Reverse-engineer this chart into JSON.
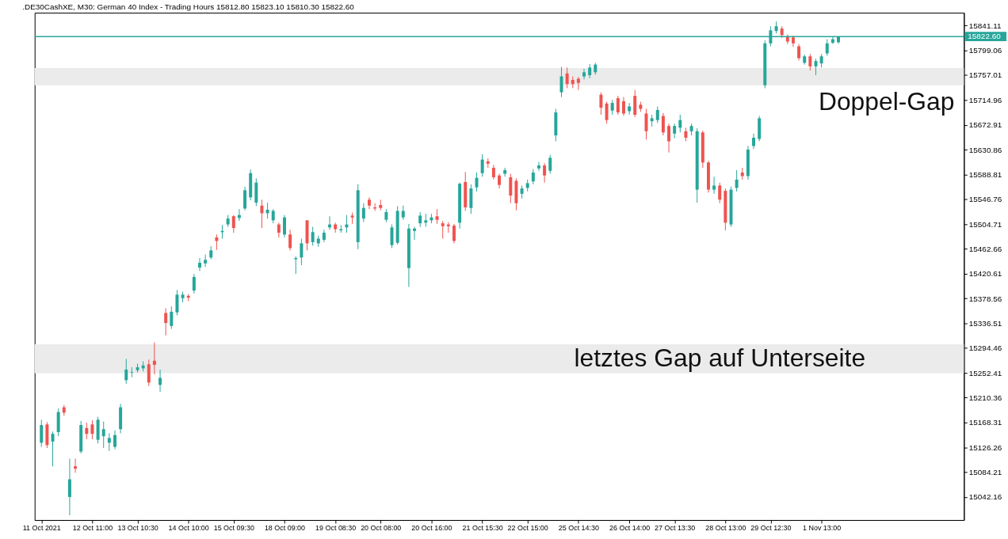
{
  "chart_data": {
    "type": "candlestick",
    "title": ".DE30CashXE, M30:  German 40 Index - Trading Hours  15812.80 15823.10 15810.30 15822.60",
    "categories": [
      "11 Oct 2021",
      null,
      null,
      null,
      null,
      null,
      null,
      null,
      null,
      "12 Oct 11:00",
      null,
      null,
      null,
      null,
      null,
      null,
      null,
      "13 Oct 10:30",
      null,
      null,
      null,
      null,
      null,
      null,
      null,
      null,
      "14 Oct 10:00",
      null,
      null,
      null,
      null,
      null,
      null,
      null,
      "15 Oct 09:30",
      null,
      null,
      null,
      null,
      null,
      null,
      null,
      null,
      "18 Oct 09:00",
      null,
      null,
      null,
      null,
      null,
      null,
      null,
      null,
      "19 Oct 08:30",
      null,
      null,
      null,
      null,
      null,
      null,
      null,
      "20 Oct 08:00",
      null,
      null,
      null,
      null,
      null,
      null,
      null,
      null,
      "20 Oct 16:00",
      null,
      null,
      null,
      null,
      null,
      null,
      null,
      null,
      "21 Oct 15:30",
      null,
      null,
      null,
      null,
      null,
      null,
      null,
      "22 Oct 15:00",
      null,
      null,
      null,
      null,
      null,
      null,
      null,
      null,
      "25 Oct 14:30",
      null,
      null,
      null,
      null,
      null,
      null,
      null,
      null,
      "26 Oct 14:00",
      null,
      null,
      null,
      null,
      null,
      null,
      null,
      "27 Oct 13:30",
      null,
      null,
      null,
      null,
      null,
      null,
      null,
      null,
      "28 Oct 13:00",
      null,
      null,
      null,
      null,
      null,
      null,
      null,
      "29 Oct 12:30",
      null,
      null,
      null,
      null,
      null,
      null,
      null,
      null,
      "1 Nov 13:00",
      null,
      null,
      null,
      null,
      null,
      null,
      null,
      null,
      null,
      null,
      null,
      null,
      null,
      null,
      null,
      null,
      null,
      null,
      null,
      null,
      null,
      null,
      null,
      null
    ],
    "ohlc": [
      [
        15134,
        15173,
        15127,
        15164
      ],
      [
        15165,
        15169,
        15125,
        15130
      ],
      [
        15136,
        15153,
        15094,
        15149
      ],
      [
        15152,
        15192,
        15145,
        15186
      ],
      [
        15194,
        15198,
        15180,
        15185
      ],
      [
        15042,
        15107,
        15011,
        15072
      ],
      [
        15094,
        15107,
        15083,
        15090
      ],
      [
        15119,
        15171,
        15116,
        15164
      ],
      [
        15159,
        15168,
        15140,
        15149
      ],
      [
        15165,
        15172,
        15140,
        15149
      ],
      [
        15139,
        15178,
        15133,
        15173
      ],
      [
        15145,
        15170,
        15125,
        15157
      ],
      [
        15134,
        15150,
        15120,
        15142
      ],
      [
        15127,
        15155,
        15123,
        15147
      ],
      [
        15157,
        15200,
        15150,
        15194
      ],
      [
        15240,
        15276,
        15234,
        15258
      ],
      [
        15253,
        15262,
        15245,
        15254
      ],
      [
        15257,
        15268,
        15253,
        15262
      ],
      [
        15260,
        15272,
        15255,
        15265
      ],
      [
        15267,
        15275,
        15230,
        15236
      ],
      [
        15273,
        15304,
        15250,
        15266
      ],
      [
        15232,
        15258,
        15220,
        15244
      ],
      [
        15354,
        15362,
        15316,
        15337
      ],
      [
        15332,
        15365,
        15327,
        15356
      ],
      [
        15355,
        15393,
        15350,
        15385
      ],
      [
        15379,
        15390,
        15372,
        15385
      ],
      [
        15383,
        15386,
        15374,
        15380
      ],
      [
        15392,
        15420,
        15387,
        15415
      ],
      [
        15431,
        15447,
        15425,
        15439
      ],
      [
        15438,
        15453,
        15432,
        15444
      ],
      [
        15448,
        15467,
        15445,
        15460
      ],
      [
        15482,
        15487,
        15461,
        15476
      ],
      [
        15491,
        15503,
        15480,
        15493
      ],
      [
        15504,
        15520,
        15500,
        15514
      ],
      [
        15518,
        15520,
        15490,
        15498
      ],
      [
        15515,
        15530,
        15510,
        15520
      ],
      [
        15531,
        15568,
        15528,
        15562
      ],
      [
        15550,
        15597,
        15545,
        15591
      ],
      [
        15541,
        15582,
        15535,
        15575
      ],
      [
        15536,
        15546,
        15498,
        15523
      ],
      [
        15523,
        15541,
        15514,
        15529
      ],
      [
        15511,
        15530,
        15506,
        15527
      ],
      [
        15504,
        15507,
        15482,
        15490
      ],
      [
        15487,
        15520,
        15482,
        15516
      ],
      [
        15487,
        15495,
        15460,
        15464
      ],
      [
        15445,
        15450,
        15420,
        15447
      ],
      [
        15448,
        15480,
        15435,
        15472
      ],
      [
        15511,
        15511,
        15460,
        15472
      ],
      [
        15474,
        15500,
        15468,
        15491
      ],
      [
        15472,
        15485,
        15466,
        15480
      ],
      [
        15478,
        15495,
        15474,
        15490
      ],
      [
        15499,
        15518,
        15495,
        15504
      ],
      [
        15504,
        15507,
        15490,
        15496
      ],
      [
        15494,
        15503,
        15490,
        15496
      ],
      [
        15499,
        15520,
        15490,
        15504
      ],
      [
        15519,
        15524,
        15505,
        15516
      ],
      [
        15474,
        15572,
        15462,
        15562
      ],
      [
        15514,
        15540,
        15508,
        15532
      ],
      [
        15546,
        15550,
        15530,
        15536
      ],
      [
        15533,
        15540,
        15527,
        15531
      ],
      [
        15537,
        15546,
        15528,
        15532
      ],
      [
        15512,
        15530,
        15508,
        15525
      ],
      [
        15469,
        15504,
        15464,
        15499
      ],
      [
        15473,
        15535,
        15470,
        15527
      ],
      [
        15516,
        15536,
        15512,
        15527
      ],
      [
        15430,
        15505,
        15398,
        15497
      ],
      [
        15493,
        15500,
        15478,
        15497
      ],
      [
        15506,
        15525,
        15500,
        15519
      ],
      [
        15507,
        15522,
        15500,
        15511
      ],
      [
        15511,
        15522,
        15506,
        15516
      ],
      [
        15518,
        15530,
        15505,
        15512
      ],
      [
        15506,
        15510,
        15480,
        15501
      ],
      [
        15504,
        15508,
        15490,
        15501
      ],
      [
        15502,
        15505,
        15472,
        15476
      ],
      [
        15507,
        15575,
        15497,
        15573
      ],
      [
        15576,
        15593,
        15527,
        15533
      ],
      [
        15532,
        15572,
        15522,
        15565
      ],
      [
        15567,
        15592,
        15560,
        15583
      ],
      [
        15591,
        15623,
        15585,
        15614
      ],
      [
        15611,
        15616,
        15600,
        15607
      ],
      [
        15600,
        15605,
        15580,
        15584
      ],
      [
        15587,
        15590,
        15565,
        15571
      ],
      [
        15590,
        15600,
        15585,
        15596
      ],
      [
        15584,
        15590,
        15540,
        15553
      ],
      [
        15578,
        15582,
        15528,
        15540
      ],
      [
        15556,
        15570,
        15548,
        15565
      ],
      [
        15566,
        15580,
        15560,
        15574
      ],
      [
        15577,
        15598,
        15572,
        15592
      ],
      [
        15599,
        15610,
        15595,
        15604
      ],
      [
        15604,
        15608,
        15575,
        15587
      ],
      [
        15595,
        15622,
        15590,
        15617
      ],
      [
        15655,
        15700,
        15645,
        15694
      ],
      [
        15728,
        15771,
        15720,
        15755
      ],
      [
        15760,
        15770,
        15735,
        15742
      ],
      [
        15749,
        15755,
        15735,
        15742
      ],
      [
        15751,
        15754,
        15732,
        15744
      ],
      [
        15755,
        15768,
        15750,
        15762
      ],
      [
        15757,
        15776,
        15752,
        15770
      ],
      [
        15762,
        15778,
        15758,
        15775
      ],
      [
        15724,
        15728,
        15690,
        15702
      ],
      [
        15709,
        15712,
        15675,
        15681
      ],
      [
        15697,
        15715,
        15690,
        15710
      ],
      [
        15718,
        15722,
        15690,
        15694
      ],
      [
        15713,
        15720,
        15688,
        15692
      ],
      [
        15696,
        15710,
        15690,
        15704
      ],
      [
        15722,
        15732,
        15686,
        15690
      ],
      [
        15707,
        15712,
        15695,
        15700
      ],
      [
        15692,
        15700,
        15648,
        15662
      ],
      [
        15679,
        15690,
        15670,
        15684
      ],
      [
        15681,
        15704,
        15676,
        15698
      ],
      [
        15688,
        15693,
        15655,
        15660
      ],
      [
        15671,
        15675,
        15626,
        15645
      ],
      [
        15658,
        15675,
        15650,
        15671
      ],
      [
        15668,
        15690,
        15660,
        15681
      ],
      [
        15662,
        15668,
        15645,
        15651
      ],
      [
        15662,
        15675,
        15655,
        15671
      ],
      [
        15563,
        15667,
        15541,
        15662
      ],
      [
        15660,
        15663,
        15600,
        15609
      ],
      [
        15609,
        15612,
        15558,
        15563
      ],
      [
        15563,
        15585,
        15556,
        15570
      ],
      [
        15570,
        15575,
        15540,
        15546
      ],
      [
        15561,
        15565,
        15494,
        15507
      ],
      [
        15504,
        15568,
        15500,
        15563
      ],
      [
        15566,
        15596,
        15560,
        15580
      ],
      [
        15592,
        15600,
        15580,
        15586
      ],
      [
        15586,
        15637,
        15580,
        15631
      ],
      [
        15637,
        15658,
        15632,
        15651
      ],
      [
        15649,
        15688,
        15645,
        15684
      ],
      [
        15740,
        15816,
        15735,
        15811
      ],
      [
        15811,
        15840,
        15806,
        15833
      ],
      [
        15832,
        15848,
        15828,
        15840
      ],
      [
        15836,
        15840,
        15820,
        15825
      ],
      [
        15823,
        15826,
        15810,
        15814
      ],
      [
        15821,
        15824,
        15805,
        15811
      ],
      [
        15806,
        15810,
        15782,
        15786
      ],
      [
        15778,
        15792,
        15775,
        15789
      ],
      [
        15789,
        15793,
        15765,
        15772
      ],
      [
        15772,
        15785,
        15757,
        15781
      ],
      [
        15777,
        15793,
        15770,
        15789
      ],
      [
        15794,
        15818,
        15790,
        15811
      ],
      [
        15812,
        15822,
        15810,
        15818
      ],
      [
        15812.8,
        15823.1,
        15810.3,
        15822.6
      ],
      null,
      null,
      null,
      null,
      null,
      null,
      null,
      null,
      null,
      null,
      null,
      null,
      null,
      null,
      null,
      null,
      null,
      null,
      null,
      null,
      null
    ],
    "colors": [
      "#26a69a",
      "#ef5350",
      "#26a69a",
      "#26a69a",
      "#ef5350",
      "#26a69a",
      "#ef5350",
      "#26a69a",
      "#ef5350",
      "#ef5350",
      "#26a69a",
      "#26a69a",
      "#26a69a",
      "#26a69a",
      "#26a69a",
      "#26a69a",
      "#26a69a",
      "#26a69a",
      "#26a69a",
      "#ef5350",
      "#ef5350",
      "#26a69a",
      "#ef5350",
      "#26a69a",
      "#26a69a",
      "#26a69a",
      "#ef5350",
      "#26a69a",
      "#26a69a",
      "#26a69a",
      "#26a69a",
      "#ef5350",
      "#26a69a",
      "#26a69a",
      "#ef5350",
      "#26a69a",
      "#26a69a",
      "#26a69a",
      "#26a69a",
      "#ef5350",
      "#26a69a",
      "#26a69a",
      "#ef5350",
      "#26a69a",
      "#ef5350",
      "#26a69a",
      "#26a69a",
      "#ef5350",
      "#26a69a",
      "#26a69a",
      "#26a69a",
      "#26a69a",
      "#ef5350",
      "#26a69a",
      "#26a69a",
      "#ef5350",
      "#26a69a",
      "#26a69a",
      "#ef5350",
      "#ef5350",
      "#ef5350",
      "#26a69a",
      "#26a69a",
      "#26a69a",
      "#26a69a",
      "#26a69a",
      "#26a69a",
      "#26a69a",
      "#26a69a",
      "#26a69a",
      "#ef5350",
      "#ef5350",
      "#ef5350",
      "#ef5350",
      "#26a69a",
      "#ef5350",
      "#26a69a",
      "#26a69a",
      "#26a69a",
      "#ef5350",
      "#ef5350",
      "#ef5350",
      "#26a69a",
      "#ef5350",
      "#ef5350",
      "#26a69a",
      "#26a69a",
      "#26a69a",
      "#26a69a",
      "#ef5350",
      "#26a69a",
      "#26a69a",
      "#26a69a",
      "#ef5350",
      "#ef5350",
      "#ef5350",
      "#26a69a",
      "#26a69a",
      "#26a69a",
      "#ef5350",
      "#ef5350",
      "#26a69a",
      "#ef5350",
      "#ef5350",
      "#26a69a",
      "#ef5350",
      "#ef5350",
      "#ef5350",
      "#26a69a",
      "#26a69a",
      "#ef5350",
      "#ef5350",
      "#26a69a",
      "#26a69a",
      "#ef5350",
      "#26a69a",
      "#26a69a",
      "#ef5350",
      "#ef5350",
      "#26a69a",
      "#ef5350",
      "#ef5350",
      "#26a69a",
      "#26a69a",
      "#ef5350",
      "#26a69a",
      "#26a69a",
      "#26a69a",
      "#26a69a",
      "#26a69a",
      "#26a69a",
      "#ef5350",
      "#ef5350",
      "#ef5350",
      "#ef5350",
      "#26a69a",
      "#ef5350",
      "#26a69a",
      "#26a69a",
      "#26a69a",
      "#26a69a",
      "#26a69a",
      null,
      null,
      null,
      null,
      null,
      null,
      null,
      null,
      null,
      null,
      null,
      null,
      null,
      null,
      null,
      null,
      null,
      null,
      null,
      null,
      null
    ],
    "ylim": [
      15003,
      15863
    ],
    "yticks": [
      15042.16,
      15084.21,
      15126.26,
      15168.31,
      15210.36,
      15252.41,
      15294.46,
      15336.51,
      15378.56,
      15420.61,
      15462.66,
      15504.71,
      15546.76,
      15588.81,
      15630.86,
      15672.91,
      15714.96,
      15757.01,
      15799.06,
      15841.11
    ],
    "bands": [
      {
        "axis": "y",
        "from": 15252,
        "to": 15301,
        "label": "letztes Gap auf Unterseite",
        "color": "#ebebeb"
      },
      {
        "axis": "y",
        "from": 15740,
        "to": 15769,
        "label": "Doppel-Gap",
        "color": "#ebebeb"
      }
    ],
    "ref_lines": [
      {
        "axis": "y",
        "value": 15822.6,
        "label": "15822.60",
        "color": "#26a69a"
      }
    ]
  }
}
